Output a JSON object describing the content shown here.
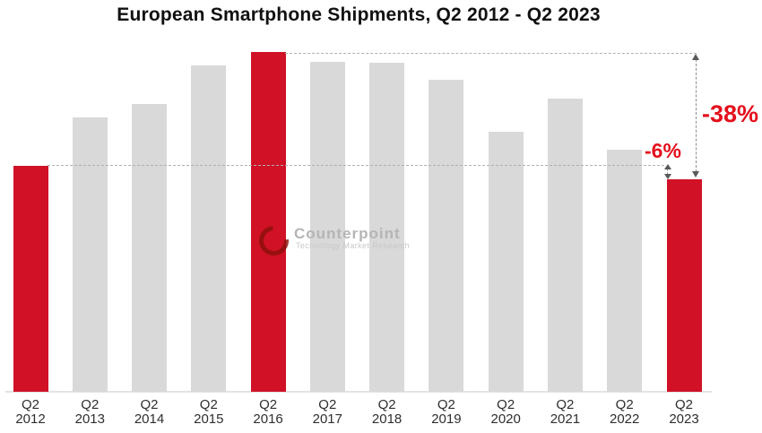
{
  "title": "European Smartphone Shipments, Q2 2012 - Q2 2023",
  "colors": {
    "bar_red": "#d01126",
    "bar_gray": "#d9d9d9",
    "annotation_red": "#e4101c",
    "dashed_line": "#b0b0b0",
    "dashed_line_dark": "#8d8d8d",
    "arrowhead": "#595959",
    "axis_label": "#2e2e2e",
    "baseline": "#e3e3e3",
    "watermark_logo": "#8b100a",
    "watermark_text": "#b5b5b5",
    "watermark_subtext": "#c8c8c8",
    "title_text": "#111111"
  },
  "chart_data": {
    "type": "bar",
    "title": "European Smartphone Shipments, Q2 2012 - Q2 2023",
    "categories": [
      "Q2 2012",
      "Q2 2013",
      "Q2 2014",
      "Q2 2015",
      "Q2 2016",
      "Q2 2017",
      "Q2 2018",
      "Q2 2019",
      "Q2 2020",
      "Q2 2021",
      "Q2 2022",
      "Q2 2023"
    ],
    "values": [
      66.5,
      80.7,
      84.7,
      96.0,
      100.0,
      97.1,
      96.8,
      91.8,
      76.5,
      86.3,
      71.2,
      62.5
    ],
    "value_note": "no numeric axis shown; values are an index estimated from bar heights with the Q2 2016 peak = 100",
    "highlighted_categories": [
      "Q2 2012",
      "Q2 2016",
      "Q2 2023"
    ],
    "xlabel": "",
    "ylabel": "",
    "legend": "none",
    "gridlines": "none",
    "annotations": [
      {
        "label": "-38%",
        "connects": "dashed drop from Q2 2016 peak line to top of Q2 2023 bar"
      },
      {
        "label": "-6%",
        "connects": "dashed drop from Q2 2012 level line to top of Q2 2023 bar"
      }
    ]
  },
  "watermark": {
    "name": "Counterpoint",
    "subtitle": "Technology Market Research"
  }
}
